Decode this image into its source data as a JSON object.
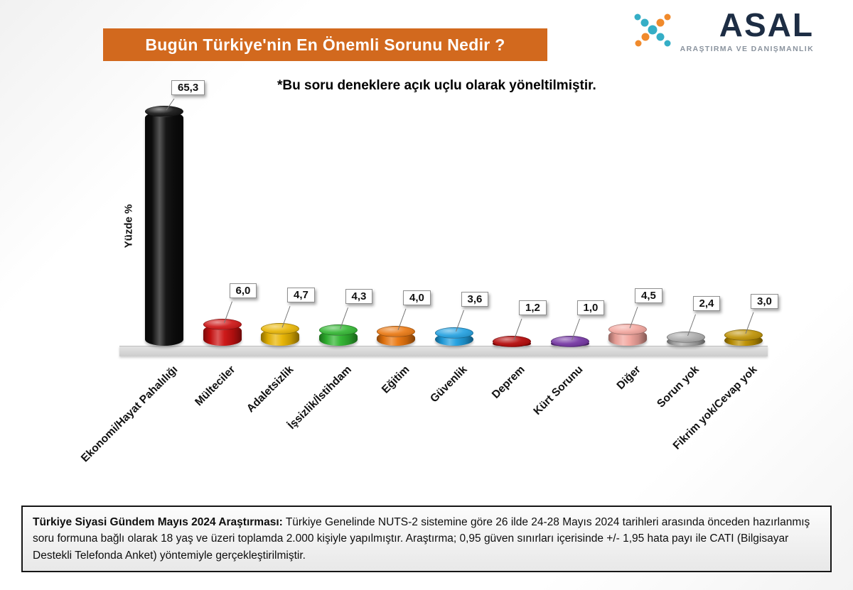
{
  "header": {
    "title": "Bugün Türkiye'nin En Önemli Sorunu Nedir ?",
    "banner_color": "#d2691e",
    "logo": {
      "name": "ASAL",
      "subtitle": "ARAŞTIRMA VE DANIŞMANLIK",
      "name_color": "#1d2d44",
      "accent_teal": "#35aec6",
      "accent_orange": "#f08a2c"
    }
  },
  "note": "*Bu soru deneklere açık uçlu olarak yöneltilmiştir.",
  "chart_data": {
    "type": "bar",
    "style": "3d-cylinder",
    "title": "Bugün Türkiye'nin En Önemli Sorunu Nedir ?",
    "ylabel": "Yüzde %",
    "xlabel": "",
    "ylim": [
      0,
      70
    ],
    "grid": false,
    "legend": false,
    "unit": "percent",
    "categories": [
      "Ekonomi/Hayat Pahalılığı",
      "Mülteciler",
      "Adaletsizlik",
      "İşsizlik/İstihdam",
      "Eğitim",
      "Güvenlik",
      "Deprem",
      "Kürt Sorunu",
      "Diğer",
      "Sorun yok",
      "Fikrim yok/Cevap yok"
    ],
    "values": [
      65.3,
      6.0,
      4.7,
      4.3,
      4.0,
      3.6,
      1.2,
      1.0,
      4.5,
      2.4,
      3.0
    ],
    "value_labels": [
      "65,3",
      "6,0",
      "4,7",
      "4,3",
      "4,0",
      "3,6",
      "1,2",
      "1,0",
      "4,5",
      "2,4",
      "3,0"
    ],
    "colors": [
      "#0d0d0d",
      "#cc1111",
      "#e8b400",
      "#2fb52f",
      "#ea760e",
      "#1f9fe0",
      "#b00000",
      "#7030a0",
      "#f2a49c",
      "#a8a8a8",
      "#bd9000"
    ]
  },
  "footer": {
    "lead": "Türkiye Siyasi Gündem Mayıs 2024 Araştırması:",
    "body": " Türkiye Genelinde NUTS-2 sistemine göre 26 ilde 24-28 Mayıs 2024 tarihleri arasında önceden hazırlanmış soru formuna bağlı olarak 18 yaş ve üzeri toplamda 2.000 kişiyle yapılmıştır. Araştırma; 0,95 güven sınırları içerisinde +/- 1,95 hata payı ile CATI (Bilgisayar Destekli Telefonda Anket) yöntemiyle gerçekleştirilmiştir."
  }
}
